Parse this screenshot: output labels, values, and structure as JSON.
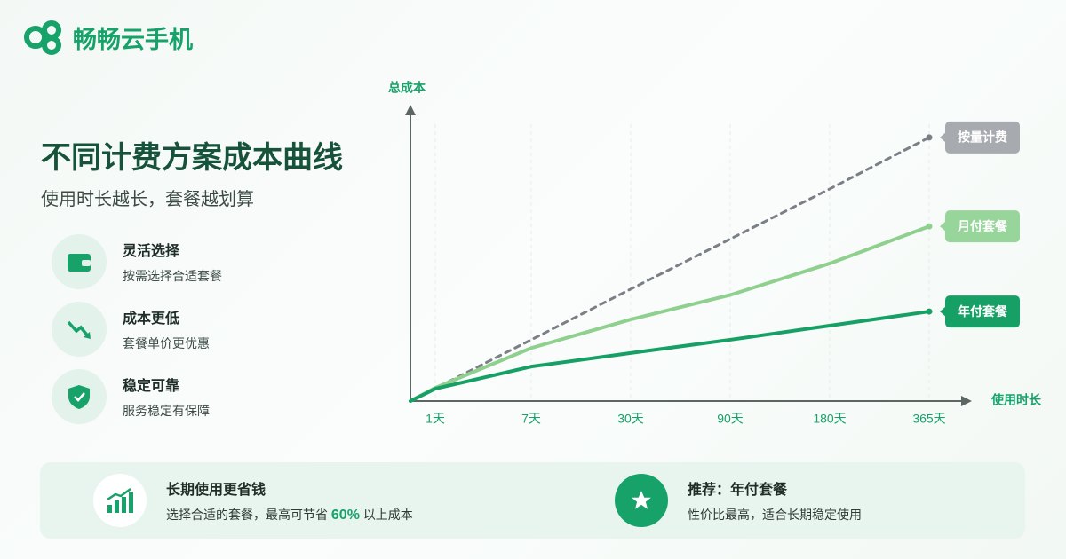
{
  "header": {
    "brand": "畅畅云手机"
  },
  "intro": {
    "title": "不同计费方案成本曲线",
    "subtitle": "使用时长越长，套餐越划算"
  },
  "features": [
    {
      "title": "灵活选择",
      "desc": "按需选择合适套餐"
    },
    {
      "title": "成本更低",
      "desc": "套餐单价更优惠"
    },
    {
      "title": "稳定可靠",
      "desc": "服务稳定有保障"
    }
  ],
  "footer": {
    "left": {
      "title": "长期使用更省钱",
      "desc_before": "选择合适的套餐，最高可节省",
      "highlight": "60%",
      "desc_after": "以上成本"
    },
    "right": {
      "title": "推荐：年付套餐",
      "desc": "性价比最高，适合长期稳定使用"
    }
  },
  "chart_data": {
    "type": "line",
    "y_label": "总成本",
    "x_label": "使用时长",
    "categories": [
      null,
      "1天",
      "7天",
      "30天",
      "90天",
      "180天",
      "365天"
    ],
    "series": [
      {
        "name": "按量计费",
        "color": "#7b8087",
        "label_color": "#a7abb0",
        "linestyle": "dashed",
        "values": [
          0,
          4.3,
          20.8,
          38,
          55,
          72,
          89.5
        ]
      },
      {
        "name": "月付套餐",
        "color": "#8fd08f",
        "label_color": "#98d59a",
        "linestyle": "solid",
        "values": [
          0,
          4.5,
          18,
          27.7,
          36,
          46.7,
          59.3
        ]
      },
      {
        "name": "年付套餐",
        "color": "#16a066",
        "label_color": "#16a066",
        "linestyle": "solid",
        "values": [
          0,
          4.2,
          11.7,
          16.3,
          20.8,
          25.6,
          30.4
        ]
      }
    ],
    "ylim": [
      0,
      100
    ]
  }
}
